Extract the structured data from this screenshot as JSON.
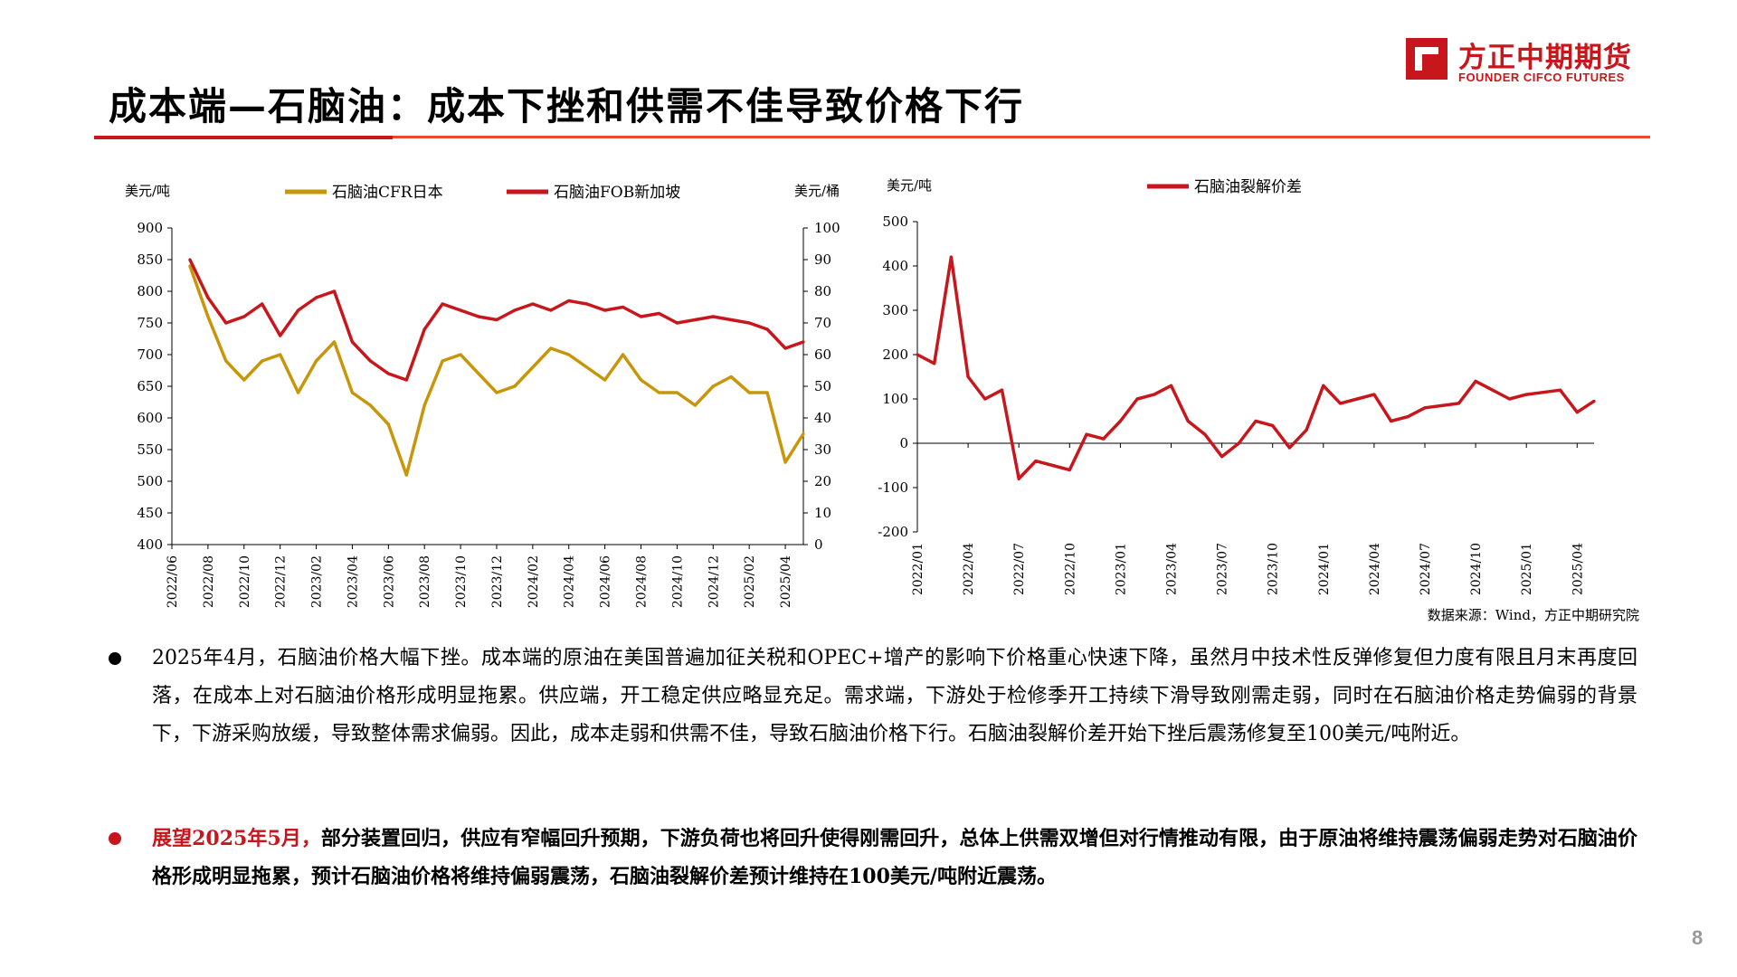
{
  "header": {
    "title": "成本端—石脑油：成本下挫和供需不佳导致价格下行",
    "logo_cn": "方正中期期货",
    "logo_en": "FOUNDER CIFCO FUTURES",
    "page_number": "8"
  },
  "colors": {
    "accent": "#c8161d",
    "gold": "#c8960a",
    "rule": "#e8492f"
  },
  "chart_data": [
    {
      "type": "line",
      "left_unit": "美元/吨",
      "right_unit": "美元/桶",
      "yticks": [
        "900",
        "850",
        "800",
        "750",
        "700",
        "650",
        "600",
        "550",
        "500",
        "450",
        "400"
      ],
      "y2ticks": [
        "100",
        "90",
        "80",
        "70",
        "60",
        "50",
        "40",
        "30",
        "20",
        "10",
        "0"
      ],
      "ylim": [
        400,
        900
      ],
      "y2lim": [
        0,
        100
      ],
      "xticks": [
        "2022/06",
        "2022/08",
        "2022/10",
        "2022/12",
        "2023/02",
        "2023/04",
        "2023/06",
        "2023/08",
        "2023/10",
        "2023/12",
        "2024/02",
        "2024/04",
        "2024/06",
        "2024/08",
        "2024/10",
        "2024/12",
        "2025/02",
        "2025/04"
      ],
      "series": [
        {
          "name": "石脑油CFR日本",
          "color": "#c8960a",
          "x": [
            "2022/07",
            "2022/08",
            "2022/09",
            "2022/10",
            "2022/11",
            "2022/12",
            "2023/01",
            "2023/02",
            "2023/03",
            "2023/04",
            "2023/05",
            "2023/06",
            "2023/07",
            "2023/08",
            "2023/09",
            "2023/10",
            "2023/11",
            "2023/12",
            "2024/01",
            "2024/02",
            "2024/03",
            "2024/04",
            "2024/05",
            "2024/06",
            "2024/07",
            "2024/08",
            "2024/09",
            "2024/10",
            "2024/11",
            "2024/12",
            "2025/01",
            "2025/02",
            "2025/03",
            "2025/04",
            "2025/05"
          ],
          "values": [
            840,
            760,
            690,
            660,
            690,
            700,
            640,
            690,
            720,
            640,
            620,
            590,
            510,
            620,
            690,
            700,
            670,
            640,
            650,
            680,
            710,
            700,
            680,
            660,
            700,
            660,
            640,
            640,
            620,
            650,
            665,
            640,
            640,
            530,
            575
          ]
        },
        {
          "name": "石脑油FOB新加坡",
          "color": "#c8161d",
          "x": [
            "2022/07",
            "2022/08",
            "2022/09",
            "2022/10",
            "2022/11",
            "2022/12",
            "2023/01",
            "2023/02",
            "2023/03",
            "2023/04",
            "2023/05",
            "2023/06",
            "2023/07",
            "2023/08",
            "2023/09",
            "2023/10",
            "2023/11",
            "2023/12",
            "2024/01",
            "2024/02",
            "2024/03",
            "2024/04",
            "2024/05",
            "2024/06",
            "2024/07",
            "2024/08",
            "2024/09",
            "2024/10",
            "2024/11",
            "2024/12",
            "2025/01",
            "2025/02",
            "2025/03",
            "2025/04",
            "2025/05"
          ],
          "values": [
            850,
            790,
            750,
            760,
            780,
            730,
            770,
            790,
            800,
            720,
            690,
            670,
            660,
            740,
            780,
            770,
            760,
            755,
            770,
            780,
            770,
            785,
            780,
            770,
            775,
            760,
            765,
            750,
            755,
            760,
            755,
            750,
            740,
            710,
            720
          ]
        }
      ]
    },
    {
      "type": "line",
      "left_unit": "美元/吨",
      "yticks": [
        "500",
        "400",
        "300",
        "200",
        "100",
        "0",
        "-100",
        "-200"
      ],
      "ylim": [
        -200,
        500
      ],
      "xticks": [
        "2022/01",
        "2022/04",
        "2022/07",
        "2022/10",
        "2023/01",
        "2023/04",
        "2023/07",
        "2023/10",
        "2024/01",
        "2024/04",
        "2024/07",
        "2024/10",
        "2025/01",
        "2025/04"
      ],
      "series": [
        {
          "name": "石脑油裂解价差",
          "color": "#c8161d",
          "x": [
            "2022/01",
            "2022/02",
            "2022/03",
            "2022/04",
            "2022/05",
            "2022/06",
            "2022/07",
            "2022/08",
            "2022/09",
            "2022/10",
            "2022/11",
            "2022/12",
            "2023/01",
            "2023/02",
            "2023/03",
            "2023/04",
            "2023/05",
            "2023/06",
            "2023/07",
            "2023/08",
            "2023/09",
            "2023/10",
            "2023/11",
            "2023/12",
            "2024/01",
            "2024/02",
            "2024/03",
            "2024/04",
            "2024/05",
            "2024/06",
            "2024/07",
            "2024/08",
            "2024/09",
            "2024/10",
            "2024/11",
            "2024/12",
            "2025/01",
            "2025/02",
            "2025/03",
            "2025/04",
            "2025/05"
          ],
          "values": [
            200,
            180,
            420,
            150,
            100,
            120,
            -80,
            -40,
            -50,
            -60,
            20,
            10,
            50,
            100,
            110,
            130,
            50,
            20,
            -30,
            0,
            50,
            40,
            -10,
            30,
            130,
            90,
            100,
            110,
            50,
            60,
            80,
            85,
            90,
            140,
            120,
            100,
            110,
            115,
            120,
            70,
            95
          ]
        }
      ]
    }
  ],
  "source": "数据来源：Wind，方正中期研究院",
  "bullets": [
    {
      "text": "2025年4月，石脑油价格大幅下挫。成本端的原油在美国普遍加征关税和OPEC+增产的影响下价格重心快速下降，虽然月中技术性反弹修复但力度有限且月末再度回落，在成本上对石脑油价格形成明显拖累。供应端，开工稳定供应略显充足。需求端，下游处于检修季开工持续下滑导致刚需走弱，同时在石脑油价格走势偏弱的背景下，下游采购放缓，导致整体需求偏弱。因此，成本走弱和供需不佳，导致石脑油价格下行。石脑油裂解价差开始下挫后震荡修复至100美元/吨附近。"
    },
    {
      "highlight": "展望2025年5月，",
      "text": "部分装置回归，供应有窄幅回升预期，下游负荷也将回升使得刚需回升，总体上供需双增但对行情推动有限，由于原油将维持震荡偏弱走势对石脑油价格形成明显拖累，预计石脑油价格将维持偏弱震荡，石脑油裂解价差预计维持在100美元/吨附近震荡。"
    }
  ]
}
